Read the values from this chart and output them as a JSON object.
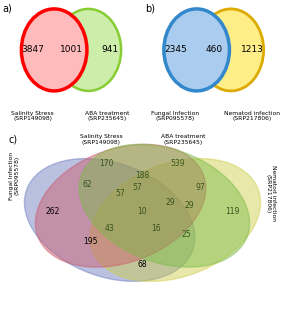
{
  "panel_a": {
    "left_label": "Salinity Stress\n(SRP149098)",
    "right_label": "ABA treatment\n(SRP235645)",
    "left_only": "3847",
    "overlap": "1001",
    "right_only": "941",
    "left_edge_color": "#FF0000",
    "right_edge_color": "#88CC33",
    "left_fill": "#FFBBBB",
    "right_fill": "#CCEEAA",
    "overlap_fill": "#CCAA88"
  },
  "panel_b": {
    "left_label": "Fungal Infection\n(SRP095578)",
    "right_label": "Nematod infection\n(SRP217806)",
    "left_only": "2345",
    "overlap": "460",
    "right_only": "1213",
    "left_edge_color": "#3388CC",
    "right_edge_color": "#DDAA00",
    "left_fill": "#AACCEE",
    "right_fill": "#FFEE88",
    "overlap_fill": "#AABB77"
  },
  "panel_c": {
    "labels": [
      "Salinity Stress\n(SRP149098)",
      "ABA treatment\n(SRP235645)",
      "Fungal Infection\n(SRP095578)",
      "Nematod infection\n(SRP217806)"
    ],
    "numbers": {
      "salinity_only": "170",
      "aba_only": "539",
      "fungal_only": "262",
      "nematod_only": "119",
      "sal_aba": "188",
      "sal_fun": "62",
      "aba_nem": "97",
      "fun_nem": "195",
      "sal_nem": "29",
      "aba_fun": "57",
      "triple_sal_aba_fun": "57",
      "triple_sal_aba_nem": "29",
      "triple_sal_fun_nem": "43",
      "triple_aba_fun_nem": "16",
      "quad": "10",
      "n_68": "68",
      "n_25": "25"
    },
    "colors": {
      "salinity": "#CC5566",
      "aba": "#77BB44",
      "fungal": "#6677BB",
      "nematod": "#CCCC44"
    }
  }
}
